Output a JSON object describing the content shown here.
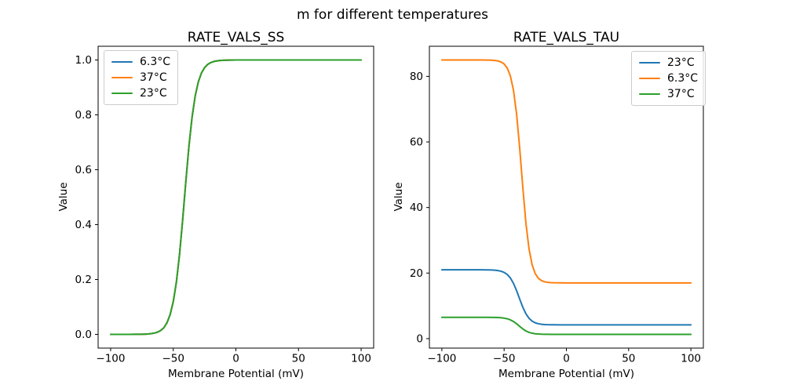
{
  "figure": {
    "suptitle": "m for different temperatures",
    "background_color": "#ffffff",
    "text_color": "#000000",
    "frame_color": "#000000"
  },
  "chart_data": [
    {
      "type": "line",
      "title": "RATE_VALS_SS",
      "xlabel": "Membrane Potential (mV)",
      "ylabel": "Value",
      "xlim": [
        -110,
        110
      ],
      "ylim": [
        -0.05,
        1.05
      ],
      "xticks": [
        -100,
        -50,
        0,
        50,
        100
      ],
      "xtick_labels": [
        "−100",
        "−50",
        "0",
        "50",
        "100"
      ],
      "yticks": [
        0.0,
        0.2,
        0.4,
        0.6,
        0.8,
        1.0
      ],
      "ytick_labels": [
        "0.0",
        "0.2",
        "0.4",
        "0.6",
        "0.8",
        "1.0"
      ],
      "grid": false,
      "legend_position": "upper-left",
      "x": [
        -100,
        -95,
        -90,
        -85,
        -80,
        -75,
        -70,
        -67.5,
        -65,
        -62.5,
        -60,
        -57.5,
        -55,
        -52.5,
        -50,
        -47.5,
        -45,
        -42.5,
        -40,
        -37.5,
        -35,
        -32.5,
        -30,
        -27.5,
        -25,
        -22.5,
        -20,
        -17.5,
        -15,
        -12.5,
        -10,
        -5,
        0,
        10,
        20,
        30,
        40,
        50,
        60,
        70,
        80,
        90,
        100
      ],
      "series": [
        {
          "name": "6.3°C",
          "color": "#1f77b4",
          "values": [
            0.0,
            0.0,
            0.0,
            0.0001,
            0.0002,
            0.0005,
            0.0016,
            0.0028,
            0.0048,
            0.0083,
            0.0144,
            0.0243,
            0.0426,
            0.0721,
            0.1192,
            0.1909,
            0.2913,
            0.4174,
            0.5553,
            0.6853,
            0.7913,
            0.8687,
            0.9201,
            0.9526,
            0.9722,
            0.9839,
            0.9907,
            0.9946,
            0.9969,
            0.9982,
            0.999,
            0.9997,
            0.9999,
            1.0,
            1.0,
            1.0,
            1.0,
            1.0,
            1.0,
            1.0,
            1.0,
            1.0,
            1.0
          ]
        },
        {
          "name": "37°C",
          "color": "#ff7f0e",
          "values": [
            0.0,
            0.0,
            0.0,
            0.0001,
            0.0002,
            0.0005,
            0.0016,
            0.0028,
            0.0048,
            0.0083,
            0.0144,
            0.0243,
            0.0426,
            0.0721,
            0.1192,
            0.1909,
            0.2913,
            0.4174,
            0.5553,
            0.6853,
            0.7913,
            0.8687,
            0.9201,
            0.9526,
            0.9722,
            0.9839,
            0.9907,
            0.9946,
            0.9969,
            0.9982,
            0.999,
            0.9997,
            0.9999,
            1.0,
            1.0,
            1.0,
            1.0,
            1.0,
            1.0,
            1.0,
            1.0,
            1.0,
            1.0
          ]
        },
        {
          "name": "23°C",
          "color": "#2ca02c",
          "values": [
            0.0,
            0.0,
            0.0,
            0.0001,
            0.0002,
            0.0005,
            0.0016,
            0.0028,
            0.0048,
            0.0083,
            0.0144,
            0.0243,
            0.0426,
            0.0721,
            0.1192,
            0.1909,
            0.2913,
            0.4174,
            0.5553,
            0.6853,
            0.7913,
            0.8687,
            0.9201,
            0.9526,
            0.9722,
            0.9839,
            0.9907,
            0.9946,
            0.9969,
            0.9982,
            0.999,
            0.9997,
            0.9999,
            1.0,
            1.0,
            1.0,
            1.0,
            1.0,
            1.0,
            1.0,
            1.0,
            1.0,
            1.0
          ]
        }
      ]
    },
    {
      "type": "line",
      "title": "RATE_VALS_TAU",
      "xlabel": "Membrane Potential (mV)",
      "ylabel": "Value",
      "xlim": [
        -110,
        110
      ],
      "ylim": [
        -2.885,
        89.185
      ],
      "xticks": [
        -100,
        -50,
        0,
        50,
        100
      ],
      "xtick_labels": [
        "−100",
        "−50",
        "0",
        "50",
        "100"
      ],
      "yticks": [
        0,
        20,
        40,
        60,
        80
      ],
      "ytick_labels": [
        "0",
        "20",
        "40",
        "60",
        "80"
      ],
      "grid": false,
      "legend_position": "upper-right",
      "x": [
        -100,
        -95,
        -90,
        -85,
        -80,
        -75,
        -70,
        -67.5,
        -65,
        -62.5,
        -60,
        -57.5,
        -55,
        -52.5,
        -50,
        -47.5,
        -45,
        -42.5,
        -40,
        -37.5,
        -35,
        -32.5,
        -30,
        -27.5,
        -25,
        -22.5,
        -20,
        -17.5,
        -15,
        -12.5,
        -10,
        -5,
        0,
        10,
        20,
        30,
        40,
        50,
        60,
        70,
        80,
        90,
        100
      ],
      "series": [
        {
          "name": "23°C",
          "color": "#1f77b4",
          "values": [
            21.0,
            21.0,
            21.0,
            21.0,
            21.0,
            21.0,
            20.99,
            20.99,
            20.98,
            20.96,
            20.93,
            20.87,
            20.76,
            20.57,
            20.2,
            19.57,
            18.51,
            16.88,
            14.66,
            12.08,
            9.59,
            7.59,
            6.2,
            5.34,
            4.83,
            4.54,
            4.38,
            4.3,
            4.25,
            4.23,
            4.22,
            4.21,
            4.2,
            4.2,
            4.2,
            4.2,
            4.2,
            4.2,
            4.2,
            4.2,
            4.2,
            4.2,
            4.2
          ]
        },
        {
          "name": "6.3°C",
          "color": "#ff7f0e",
          "values": [
            85.0,
            85.0,
            85.0,
            85.0,
            85.0,
            85.0,
            85.0,
            84.99,
            84.98,
            84.96,
            84.93,
            84.85,
            84.7,
            84.4,
            83.78,
            82.55,
            80.17,
            75.82,
            68.56,
            58.17,
            46.18,
            35.29,
            27.38,
            22.51,
            19.81,
            18.41,
            17.7,
            17.34,
            17.17,
            17.08,
            17.04,
            17.01,
            17.0,
            17.0,
            17.0,
            17.0,
            17.0,
            17.0,
            17.0,
            17.0,
            17.0,
            17.0,
            17.0
          ]
        },
        {
          "name": "37°C",
          "color": "#2ca02c",
          "values": [
            6.5,
            6.5,
            6.5,
            6.5,
            6.5,
            6.5,
            6.5,
            6.5,
            6.49,
            6.49,
            6.48,
            6.46,
            6.43,
            6.37,
            6.25,
            6.06,
            5.73,
            5.23,
            4.54,
            3.74,
            2.97,
            2.35,
            1.92,
            1.65,
            1.49,
            1.41,
            1.36,
            1.33,
            1.32,
            1.31,
            1.3,
            1.3,
            1.3,
            1.3,
            1.3,
            1.3,
            1.3,
            1.3,
            1.3,
            1.3,
            1.3,
            1.3,
            1.3
          ]
        }
      ]
    }
  ]
}
